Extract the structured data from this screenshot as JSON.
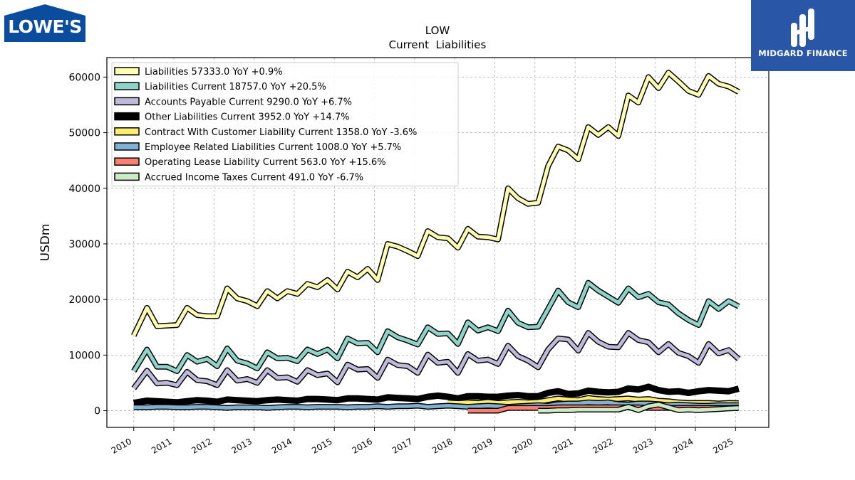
{
  "branding": {
    "company_logo_text": "LOWE'S",
    "finance_logo_text": "MIDGARD FINANCE",
    "company_logo_color": "#0c4c9e",
    "finance_logo_color": "#2a56a8"
  },
  "chart_data": {
    "type": "line",
    "title": "LOW",
    "subtitle": "Current  Liabilities",
    "xlabel": "",
    "ylabel": "USDm",
    "xlim": [
      2009.33,
      2025.83
    ],
    "ylim": [
      -3000,
      63500
    ],
    "grid": true,
    "legend_position": "top-left",
    "x_ticks": [
      2010,
      2011,
      2012,
      2013,
      2014,
      2015,
      2016,
      2017,
      2018,
      2019,
      2020,
      2021,
      2022,
      2023,
      2024,
      2025
    ],
    "x_tick_labels": [
      "2010",
      "2011",
      "2012",
      "2013",
      "2014",
      "2015",
      "2016",
      "2017",
      "2018",
      "2019",
      "2020",
      "2021",
      "2022",
      "2023",
      "2024",
      "2025"
    ],
    "y_ticks": [
      0,
      10000,
      20000,
      30000,
      40000,
      50000,
      60000
    ],
    "y_tick_labels": [
      "0",
      "10000",
      "20000",
      "30000",
      "40000",
      "50000",
      "60000"
    ],
    "series": [
      {
        "name": "Liabilities",
        "legend_label": "Liabilities  57333.0 YoY +0.9%",
        "color": "#ffffb3",
        "x": [
          2010.0,
          2010.33,
          2010.58,
          2010.83,
          2011.08,
          2011.33,
          2011.58,
          2011.83,
          2012.08,
          2012.33,
          2012.58,
          2012.83,
          2013.08,
          2013.33,
          2013.58,
          2013.83,
          2014.08,
          2014.33,
          2014.58,
          2014.83,
          2015.08,
          2015.33,
          2015.58,
          2015.83,
          2016.08,
          2016.33,
          2016.58,
          2016.83,
          2017.08,
          2017.33,
          2017.58,
          2017.83,
          2018.08,
          2018.33,
          2018.58,
          2018.83,
          2019.08,
          2019.33,
          2019.58,
          2019.83,
          2020.08,
          2020.33,
          2020.58,
          2020.83,
          2021.08,
          2021.33,
          2021.58,
          2021.83,
          2022.08,
          2022.33,
          2022.58,
          2022.83,
          2023.08,
          2023.33,
          2023.58,
          2023.83,
          2024.08,
          2024.33,
          2024.58,
          2024.83,
          2025.08
        ],
        "values": [
          13500,
          18500,
          15200,
          15300,
          15400,
          18500,
          17200,
          17000,
          17000,
          22000,
          20200,
          19700,
          18800,
          21500,
          20200,
          21500,
          21000,
          22800,
          22200,
          23500,
          21800,
          25000,
          24000,
          25500,
          23500,
          30000,
          29500,
          28700,
          27800,
          32300,
          31200,
          31000,
          29300,
          32700,
          31300,
          31200,
          30800,
          40000,
          38200,
          37200,
          37400,
          44000,
          47500,
          46800,
          45200,
          51000,
          49600,
          51000,
          49400,
          56700,
          55400,
          60000,
          58000,
          60800,
          59200,
          57500,
          56800,
          60200,
          58800,
          58300,
          57333
        ]
      },
      {
        "name": "Liabilities Current",
        "legend_label": "Liabilities Current  18757.0 YoY +20.5%",
        "color": "#8dd3c7",
        "x": [
          2010.0,
          2010.33,
          2010.58,
          2010.83,
          2011.08,
          2011.33,
          2011.58,
          2011.83,
          2012.08,
          2012.33,
          2012.58,
          2012.83,
          2013.08,
          2013.33,
          2013.58,
          2013.83,
          2014.08,
          2014.33,
          2014.58,
          2014.83,
          2015.08,
          2015.33,
          2015.58,
          2015.83,
          2016.08,
          2016.33,
          2016.58,
          2016.83,
          2017.08,
          2017.33,
          2017.58,
          2017.83,
          2018.08,
          2018.33,
          2018.58,
          2018.83,
          2019.08,
          2019.33,
          2019.58,
          2019.83,
          2020.08,
          2020.33,
          2020.58,
          2020.83,
          2021.08,
          2021.33,
          2021.58,
          2021.83,
          2022.08,
          2022.33,
          2022.58,
          2022.83,
          2023.08,
          2023.33,
          2023.58,
          2023.83,
          2024.08,
          2024.33,
          2024.58,
          2024.83,
          2025.08
        ],
        "values": [
          7100,
          11000,
          7900,
          7900,
          7100,
          10000,
          8800,
          9300,
          8000,
          11200,
          9000,
          8500,
          7600,
          10500,
          9400,
          9500,
          8900,
          11000,
          10200,
          11000,
          9400,
          13000,
          12100,
          12200,
          10500,
          14300,
          13200,
          12600,
          11900,
          15000,
          13800,
          13900,
          12000,
          15900,
          14400,
          15000,
          14300,
          18000,
          15800,
          15000,
          15100,
          18300,
          21600,
          19500,
          18600,
          23000,
          21600,
          20500,
          19400,
          22000,
          20400,
          21000,
          19500,
          19100,
          17500,
          16300,
          15400,
          19700,
          18300,
          19700,
          18757
        ]
      },
      {
        "name": "Accounts Payable Current",
        "legend_label": "Accounts Payable Current  9290.0 YoY +6.7%",
        "color": "#bebada",
        "x": [
          2010.0,
          2010.33,
          2010.58,
          2010.83,
          2011.08,
          2011.33,
          2011.58,
          2011.83,
          2012.08,
          2012.33,
          2012.58,
          2012.83,
          2013.08,
          2013.33,
          2013.58,
          2013.83,
          2014.08,
          2014.33,
          2014.58,
          2014.83,
          2015.08,
          2015.33,
          2015.58,
          2015.83,
          2016.08,
          2016.33,
          2016.58,
          2016.83,
          2017.08,
          2017.33,
          2017.58,
          2017.83,
          2018.08,
          2018.33,
          2018.58,
          2018.83,
          2019.08,
          2019.33,
          2019.58,
          2019.83,
          2020.08,
          2020.33,
          2020.58,
          2020.83,
          2021.08,
          2021.33,
          2021.58,
          2021.83,
          2022.08,
          2022.33,
          2022.58,
          2022.83,
          2023.08,
          2023.33,
          2023.58,
          2023.83,
          2024.08,
          2024.33,
          2024.58,
          2024.83,
          2025.08
        ],
        "values": [
          4000,
          7200,
          4900,
          5000,
          4600,
          7000,
          5500,
          5300,
          4600,
          7300,
          5400,
          5700,
          5000,
          7300,
          5900,
          6000,
          5200,
          7300,
          6400,
          6700,
          5100,
          8300,
          7400,
          7500,
          5900,
          9200,
          8200,
          8000,
          6800,
          10100,
          8600,
          8800,
          6800,
          10200,
          9000,
          9200,
          8400,
          11700,
          9800,
          9000,
          7800,
          11000,
          13000,
          12800,
          10800,
          14000,
          12400,
          11500,
          11400,
          14000,
          12700,
          12300,
          10500,
          12000,
          10400,
          9800,
          8600,
          12000,
          10300,
          10900,
          9290
        ]
      },
      {
        "name": "Other Liabilities Current",
        "legend_label": "Other Liabilities Current  3952.0 YoY +14.7%",
        "color": "#000000",
        "x": [
          2010.0,
          2010.33,
          2010.58,
          2010.83,
          2011.08,
          2011.33,
          2011.58,
          2011.83,
          2012.08,
          2012.33,
          2012.58,
          2012.83,
          2013.08,
          2013.33,
          2013.58,
          2013.83,
          2014.08,
          2014.33,
          2014.58,
          2014.83,
          2015.08,
          2015.33,
          2015.58,
          2015.83,
          2016.08,
          2016.33,
          2016.58,
          2016.83,
          2017.08,
          2017.33,
          2017.58,
          2017.83,
          2018.08,
          2018.33,
          2018.58,
          2018.83,
          2019.08,
          2019.33,
          2019.58,
          2019.83,
          2020.08,
          2020.33,
          2020.58,
          2020.83,
          2021.08,
          2021.33,
          2021.58,
          2021.83,
          2022.08,
          2022.33,
          2022.58,
          2022.83,
          2023.08,
          2023.33,
          2023.58,
          2023.83,
          2024.08,
          2024.33,
          2024.58,
          2024.83,
          2025.08
        ],
        "values": [
          1400,
          1800,
          1700,
          1600,
          1500,
          1700,
          1900,
          1800,
          1600,
          2000,
          1900,
          1800,
          1700,
          1900,
          2000,
          1900,
          1800,
          2100,
          2100,
          2000,
          1900,
          2200,
          2200,
          2100,
          2000,
          2400,
          2300,
          2200,
          2100,
          2500,
          2700,
          2500,
          2200,
          2600,
          2600,
          2500,
          2500,
          2700,
          2800,
          2600,
          2600,
          3200,
          3500,
          3000,
          3100,
          3600,
          3400,
          3300,
          3400,
          4000,
          3800,
          4300,
          3700,
          3400,
          3500,
          3200,
          3500,
          3700,
          3600,
          3500,
          3952
        ]
      },
      {
        "name": "Contract With Customer Liability Current",
        "legend_label": "Contract With Customer Liability Current  1358.0 YoY -3.6%",
        "color": "#ffed6f",
        "x": [
          2017.83,
          2018.08,
          2018.33,
          2018.58,
          2018.83,
          2019.08,
          2019.33,
          2019.58,
          2019.83,
          2020.08,
          2020.33,
          2020.58,
          2020.83,
          2021.08,
          2021.33,
          2021.58,
          2021.83,
          2022.08,
          2022.33,
          2022.58,
          2022.83,
          2023.08,
          2023.33,
          2023.58,
          2023.83,
          2024.08,
          2024.33,
          2024.58,
          2024.83,
          2025.08
        ],
        "values": [
          1500,
          1400,
          1500,
          1400,
          1600,
          1400,
          1500,
          1600,
          1500,
          1600,
          1900,
          2200,
          2000,
          1900,
          2300,
          2100,
          2000,
          2100,
          2200,
          2000,
          2100,
          1800,
          1700,
          1500,
          1400,
          1400,
          1400,
          1300,
          1400,
          1358
        ]
      },
      {
        "name": "Employee Related Liabilities Current",
        "legend_label": "Employee Related Liabilities Current  1008.0 YoY +5.7%",
        "color": "#80b1d3",
        "x": [
          2010.0,
          2010.33,
          2010.58,
          2010.83,
          2011.08,
          2011.33,
          2011.58,
          2011.83,
          2012.08,
          2012.33,
          2012.58,
          2012.83,
          2013.08,
          2013.33,
          2013.58,
          2013.83,
          2014.08,
          2014.33,
          2014.58,
          2014.83,
          2015.08,
          2015.33,
          2015.58,
          2015.83,
          2016.08,
          2016.33,
          2016.58,
          2016.83,
          2017.08,
          2017.33,
          2017.58,
          2017.83,
          2018.08,
          2018.33,
          2018.58,
          2018.83,
          2019.08,
          2019.33,
          2019.58,
          2019.83,
          2020.08,
          2020.33,
          2020.58,
          2020.83,
          2021.08,
          2021.33,
          2021.58,
          2021.83,
          2022.08,
          2022.33,
          2022.58,
          2022.83,
          2023.08,
          2023.33,
          2023.58,
          2023.83,
          2024.08,
          2024.33,
          2024.58,
          2024.83,
          2025.08
        ],
        "values": [
          600,
          600,
          700,
          700,
          600,
          600,
          700,
          700,
          600,
          500,
          600,
          600,
          600,
          500,
          600,
          700,
          700,
          600,
          700,
          700,
          700,
          600,
          700,
          700,
          800,
          700,
          800,
          800,
          900,
          700,
          800,
          900,
          800,
          700,
          800,
          900,
          800,
          700,
          800,
          900,
          1000,
          900,
          1200,
          1300,
          1300,
          1500,
          1400,
          1500,
          1200,
          1100,
          1300,
          1300,
          1200,
          1000,
          1100,
          1000,
          900,
          900,
          1000,
          1000,
          1008
        ]
      },
      {
        "name": "Operating Lease Liability Current",
        "legend_label": "Operating Lease Liability Current  563.0 YoY +15.6%",
        "color": "#fb8072",
        "x": [
          2018.33,
          2018.58,
          2018.83,
          2019.08,
          2019.33,
          2019.58,
          2019.83,
          2020.08,
          2020.33,
          2020.58,
          2020.83,
          2021.08,
          2021.33,
          2021.58,
          2021.83,
          2022.08,
          2022.33,
          2022.58,
          2022.83,
          2023.08,
          2023.33,
          2023.58,
          2023.83,
          2024.08,
          2024.33,
          2024.58,
          2024.83,
          2025.08
        ],
        "values": [
          0,
          0,
          0,
          0,
          500,
          500,
          500,
          500,
          500,
          600,
          600,
          600,
          600,
          600,
          600,
          600,
          600,
          600,
          500,
          500,
          500,
          500,
          500,
          500,
          500,
          500,
          500,
          563
        ]
      },
      {
        "name": "Accrued Income Taxes Current",
        "legend_label": "Accrued Income Taxes Current  491.0 YoY -6.7%",
        "color": "#ccebc5",
        "x": [
          2020.08,
          2020.33,
          2020.58,
          2020.83,
          2021.08,
          2021.33,
          2021.58,
          2021.83,
          2022.08,
          2022.33,
          2022.58,
          2022.83,
          2023.08,
          2023.33,
          2023.58,
          2023.83,
          2024.08,
          2024.33,
          2024.58,
          2024.83,
          2025.08
        ],
        "values": [
          0,
          0,
          100,
          100,
          200,
          200,
          200,
          200,
          200,
          700,
          100,
          800,
          1100,
          600,
          100,
          200,
          100,
          200,
          300,
          400,
          491
        ]
      }
    ]
  }
}
